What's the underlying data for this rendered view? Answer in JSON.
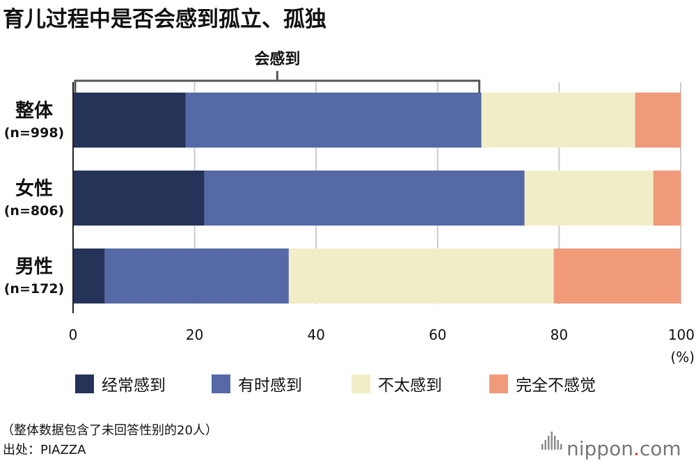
{
  "chart_data": {
    "type": "bar",
    "orientation": "horizontal",
    "stacked": true,
    "title": "育儿过程中是否会感到孤立、孤独",
    "bracket_label": "会感到",
    "categories": [
      {
        "name": "整体",
        "sub": "(n=998)"
      },
      {
        "name": "女性",
        "sub": "(n=806)"
      },
      {
        "name": "男性",
        "sub": "(n=172)"
      }
    ],
    "series": [
      {
        "name": "经常感到",
        "color": "#263358",
        "values": [
          18.5,
          21.6,
          5.2
        ]
      },
      {
        "name": "有时感到",
        "color": "#5469a6",
        "values": [
          48.7,
          52.7,
          30.3
        ]
      },
      {
        "name": "不太感到",
        "color": "#f1edc7",
        "values": [
          25.3,
          21.2,
          43.6
        ]
      },
      {
        "name": "完全不感觉",
        "color": "#f09a7a",
        "values": [
          7.5,
          4.5,
          20.9
        ]
      }
    ],
    "xlim": [
      0,
      100
    ],
    "xticks": [
      0,
      20,
      40,
      60,
      80,
      100
    ],
    "x_unit": "(%)",
    "grid": true,
    "legend_position": "bottom"
  },
  "notes": [
    "（整体数据包含了未回答性别的20人）",
    "出处：PIAZZA"
  ],
  "brand": {
    "name": "nippon",
    "dot": ".",
    "tld": "com"
  }
}
